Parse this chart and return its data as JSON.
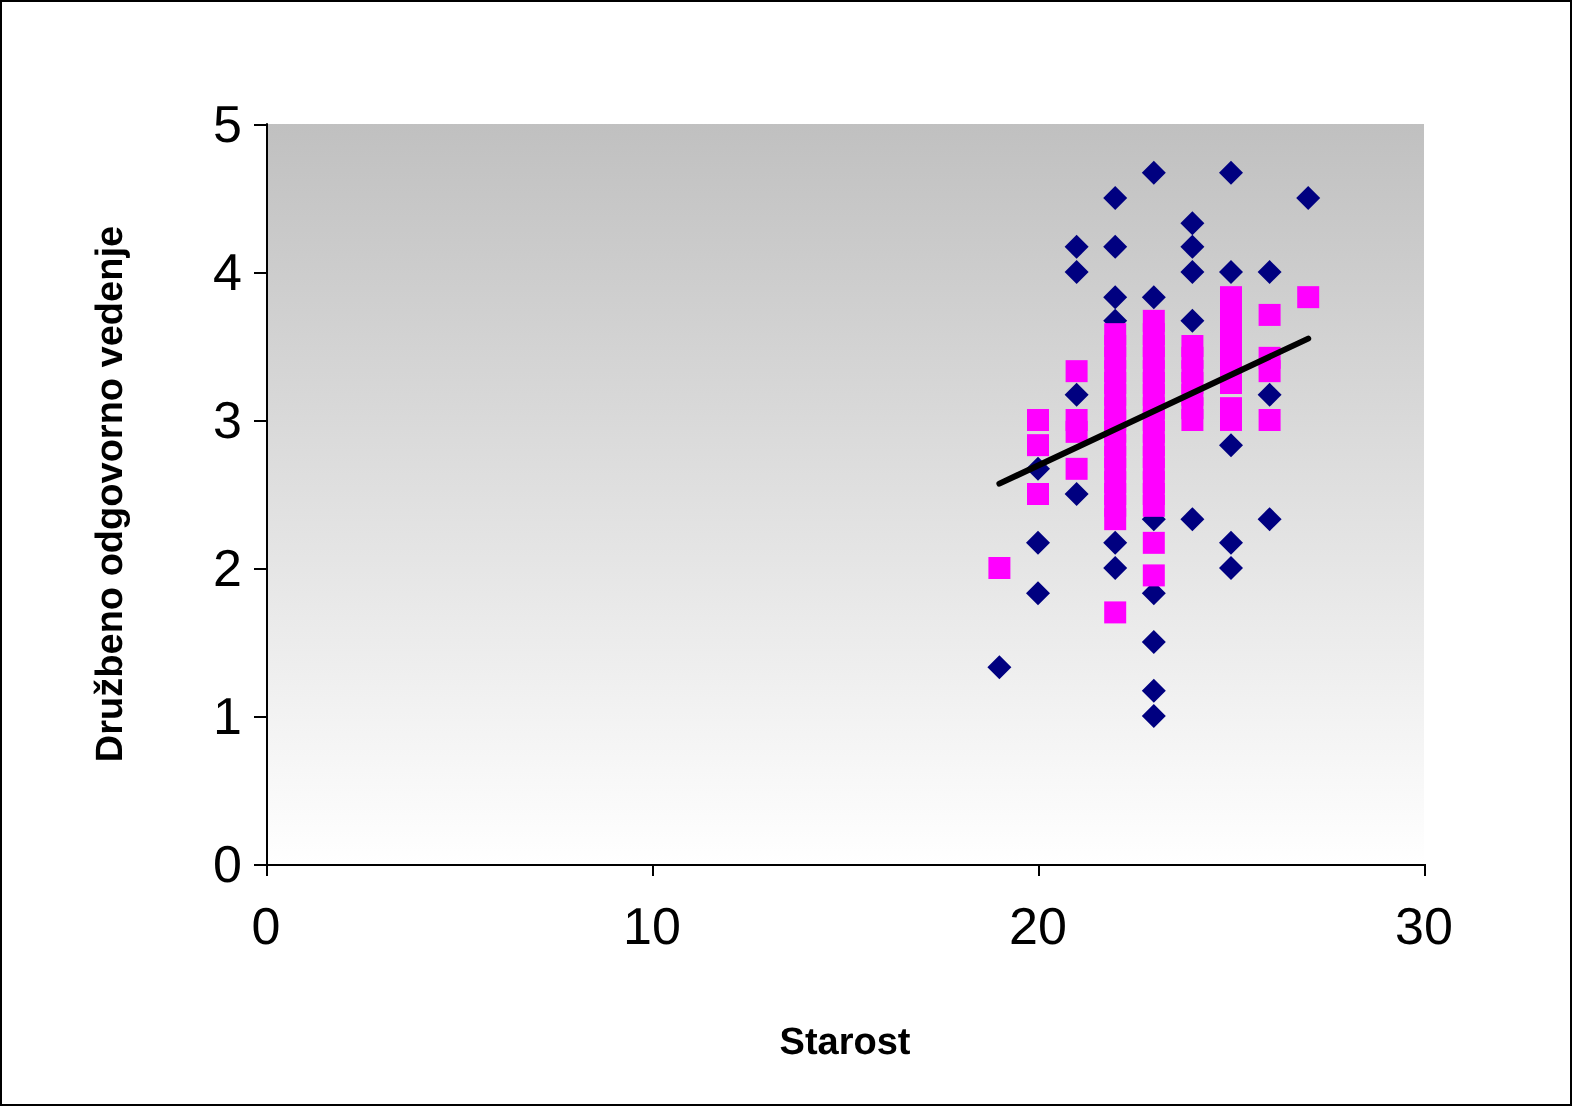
{
  "chart_data": {
    "type": "scatter",
    "xlabel": "Starost",
    "ylabel": "Družbeno odgovorno vedenje",
    "xlim": [
      0,
      30
    ],
    "xticks": [
      0,
      10,
      20,
      30
    ],
    "ylim": [
      0,
      5
    ],
    "yticks": [
      0,
      1,
      2,
      3,
      4,
      5
    ],
    "grid": false,
    "series": [
      {
        "color": "#000080",
        "marker": "diamond",
        "x": [
          19,
          20,
          20,
          20,
          21,
          21,
          21,
          21,
          22,
          22,
          22,
          22,
          22,
          22,
          23,
          23,
          23,
          23,
          23,
          23,
          23,
          24,
          24,
          24,
          24,
          24,
          25,
          25,
          25,
          25,
          25,
          26,
          26,
          26,
          27
        ],
        "values": [
          1.33,
          2.67,
          2.17,
          1.83,
          4.17,
          4.0,
          3.17,
          2.5,
          4.5,
          4.17,
          3.83,
          3.67,
          2.17,
          2.0,
          4.67,
          3.83,
          2.33,
          1.83,
          1.5,
          1.17,
          1.0,
          4.33,
          4.17,
          4.0,
          3.67,
          2.33,
          4.67,
          4.0,
          2.83,
          2.17,
          2.0,
          4.0,
          3.17,
          2.33,
          4.5
        ]
      },
      {
        "color": "#ff00ff",
        "marker": "square",
        "x": [
          19,
          20,
          20,
          20,
          21,
          21,
          21,
          21,
          22,
          22,
          22,
          22,
          22,
          22,
          22,
          22,
          22,
          22,
          22,
          22,
          22,
          22,
          22,
          22,
          22,
          23,
          23,
          23,
          23,
          23,
          23,
          23,
          23,
          23,
          23,
          23,
          23,
          23,
          23,
          23,
          23,
          23,
          23,
          24,
          24,
          24,
          24,
          24,
          24,
          24,
          25,
          25,
          25,
          25,
          25,
          25,
          25,
          25,
          25,
          25,
          26,
          26,
          26,
          26,
          27
        ],
        "values": [
          2.0,
          3.0,
          2.83,
          2.5,
          3.33,
          3.0,
          2.92,
          2.67,
          3.58,
          3.5,
          3.42,
          3.33,
          3.25,
          3.17,
          3.08,
          3.0,
          2.92,
          2.83,
          2.75,
          2.67,
          2.58,
          2.5,
          2.42,
          2.33,
          1.7,
          3.67,
          3.58,
          3.5,
          3.42,
          3.33,
          3.25,
          3.17,
          3.08,
          3.0,
          2.92,
          2.83,
          2.75,
          2.67,
          2.58,
          2.5,
          2.42,
          2.17,
          1.95,
          3.5,
          3.42,
          3.33,
          3.25,
          3.17,
          3.08,
          3.0,
          3.83,
          3.75,
          3.67,
          3.58,
          3.5,
          3.42,
          3.33,
          3.25,
          3.08,
          3.0,
          3.71,
          3.42,
          3.33,
          3.0,
          3.83
        ]
      },
      {
        "type": "line",
        "color": "#000000",
        "marker": "none",
        "line_style": "solid",
        "x": [
          19,
          27
        ],
        "values": [
          2.57,
          3.55
        ]
      }
    ]
  }
}
